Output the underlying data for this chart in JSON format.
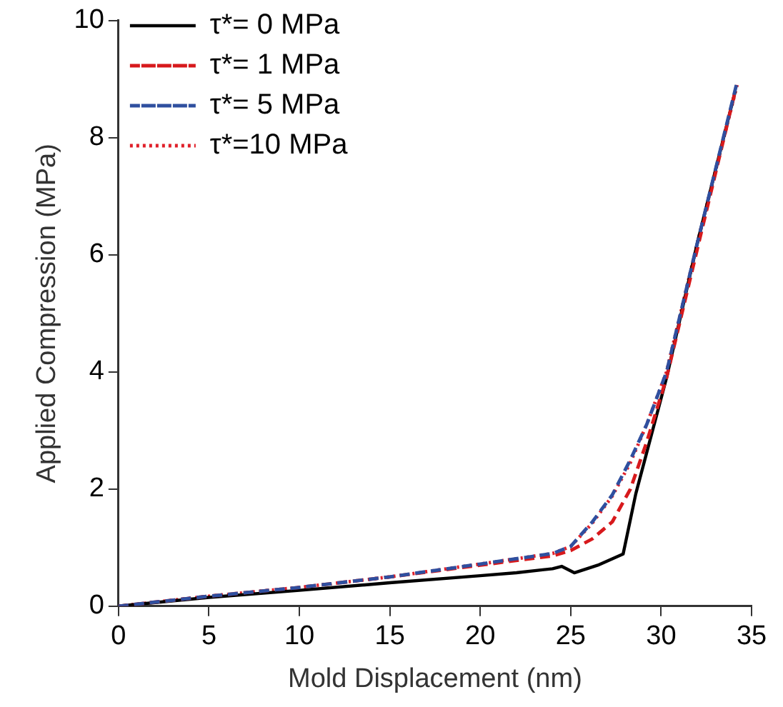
{
  "chart_data": {
    "type": "line",
    "xlabel": "Mold Displacement (nm)",
    "ylabel": "Applied Compression (MPa)",
    "xlim": [
      0,
      35
    ],
    "xticks": [
      0,
      5,
      10,
      15,
      20,
      25,
      30,
      35
    ],
    "ylim": [
      0,
      10
    ],
    "yticks": [
      0,
      2,
      4,
      6,
      8,
      10
    ],
    "grid": false,
    "legend": "top left",
    "marker": "none",
    "series": [
      {
        "name": "τ*= 0 MPa",
        "color": "#000000",
        "line_style": "solid",
        "x": [
          0,
          5,
          10,
          15,
          20,
          22,
          24,
          24.5,
          25.2,
          26.5,
          27.9,
          28.6,
          30.3,
          32,
          34.1
        ],
        "values": [
          0,
          0.15,
          0.27,
          0.4,
          0.52,
          0.57,
          0.64,
          0.68,
          0.57,
          0.7,
          0.89,
          1.92,
          3.9,
          6.2,
          8.8
        ]
      },
      {
        "name": "τ*= 1 MPa",
        "color": "#d7191c",
        "line_style": "dashed",
        "x": [
          0,
          5,
          10,
          15,
          20,
          24,
          25,
          26.2,
          27.3,
          28.3,
          29.2,
          30.3,
          32,
          34.1
        ],
        "values": [
          0,
          0.17,
          0.32,
          0.5,
          0.7,
          0.86,
          0.95,
          1.15,
          1.44,
          2.0,
          2.8,
          3.9,
          6.1,
          8.8
        ]
      },
      {
        "name": "τ*= 5 MPa",
        "color": "#2f4f9f",
        "line_style": "dashed",
        "x": [
          0,
          5,
          10,
          15,
          20,
          24,
          25,
          26.2,
          27.3,
          28.3,
          29.2,
          30.3,
          32,
          34.2
        ],
        "values": [
          0,
          0.17,
          0.32,
          0.5,
          0.72,
          0.9,
          1.02,
          1.44,
          1.9,
          2.5,
          3.1,
          4.0,
          6.2,
          8.95
        ]
      },
      {
        "name": "τ*=10 MPa",
        "color": "#e0202a",
        "line_style": "dotted",
        "x": [
          0,
          5,
          10,
          15,
          20,
          24,
          25,
          26.2,
          27.3,
          28.3,
          29.2,
          30.3,
          32,
          34.2
        ],
        "values": [
          0,
          0.17,
          0.32,
          0.5,
          0.72,
          0.9,
          1.02,
          1.42,
          1.88,
          2.45,
          3.1,
          4.0,
          6.2,
          8.9
        ]
      }
    ]
  }
}
